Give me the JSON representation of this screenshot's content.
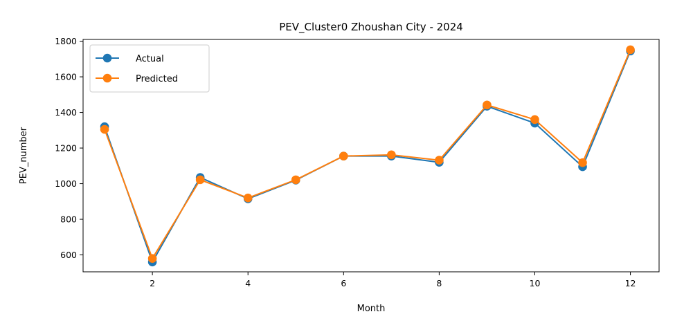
{
  "chart_data": {
    "type": "line",
    "title": "PEV_Cluster0 Zhoushan City - 2024",
    "xlabel": "Month",
    "ylabel": "PEV_number",
    "x": [
      1,
      2,
      3,
      4,
      5,
      6,
      7,
      8,
      9,
      10,
      11,
      12
    ],
    "xlim": [
      0.55,
      12.6
    ],
    "ylim": [
      505,
      1810
    ],
    "xticks": [
      2,
      4,
      6,
      8,
      10,
      12
    ],
    "yticks": [
      600,
      800,
      1000,
      1200,
      1400,
      1600,
      1800
    ],
    "grid": false,
    "legend_position": "upper-left",
    "series": [
      {
        "name": "Actual",
        "color": "#1f77b4",
        "values": [
          1320,
          560,
          1035,
          915,
          1020,
          1155,
          1155,
          1120,
          1435,
          1340,
          1095,
          1745
        ]
      },
      {
        "name": "Predicted",
        "color": "#ff7f0e",
        "values": [
          1305,
          580,
          1022,
          920,
          1022,
          1155,
          1162,
          1132,
          1442,
          1360,
          1118,
          1752
        ]
      }
    ]
  }
}
